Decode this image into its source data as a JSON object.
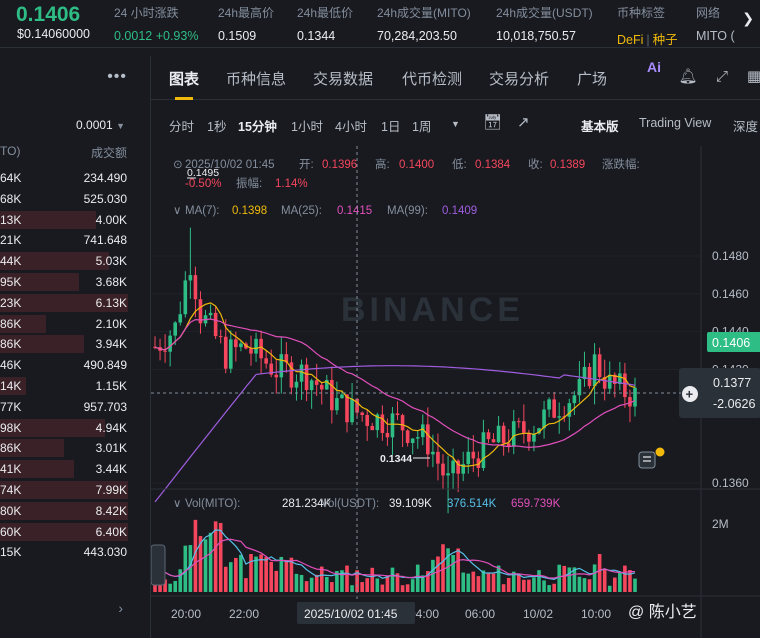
{
  "ticker": {
    "price": "0.1406",
    "price_usd": "$0.14060000",
    "cols": [
      {
        "label": "24 小时涨跌",
        "value": "0.0012 +0.93%",
        "style": "green"
      },
      {
        "label": "24h最高价",
        "value": "0.1509"
      },
      {
        "label": "24h最低价",
        "value": "0.1344"
      },
      {
        "label": "24h成交量(MITO)",
        "value": "70,284,203.50"
      },
      {
        "label": "24h成交量(USDT)",
        "value": "10,018,750.57"
      },
      {
        "label": "币种标签",
        "value_a": "DeFi",
        "value_b": "种子",
        "style": "gold"
      },
      {
        "label": "网络",
        "value": "MITO ("
      }
    ]
  },
  "book": {
    "precision": "0.0001",
    "header_left": "TO)",
    "header_right": "成交额",
    "rows": [
      {
        "l": "64K",
        "r": "234.490",
        "bar": 0
      },
      {
        "l": "68K",
        "r": "525.030",
        "bar": 0
      },
      {
        "l": "13K",
        "r": "4.00K",
        "bar": 0.75
      },
      {
        "l": "21K",
        "r": "741.648",
        "bar": 0
      },
      {
        "l": "44K",
        "r": "5.03K",
        "bar": 0.85
      },
      {
        "l": "95K",
        "r": "3.68K",
        "bar": 0.62
      },
      {
        "l": "23K",
        "r": "6.13K",
        "bar": 1.0
      },
      {
        "l": "86K",
        "r": "2.10K",
        "bar": 0.36
      },
      {
        "l": "86K",
        "r": "3.94K",
        "bar": 0.66
      },
      {
        "l": "46K",
        "r": "490.849",
        "bar": 0
      },
      {
        "l": "14K",
        "r": "1.15K",
        "bar": 0.2
      },
      {
        "l": "77K",
        "r": "957.703",
        "bar": 0
      },
      {
        "l": "98K",
        "r": "4.94K",
        "bar": 0.82
      },
      {
        "l": "86K",
        "r": "3.01K",
        "bar": 0.5
      },
      {
        "l": "41K",
        "r": "3.44K",
        "bar": 0.58
      },
      {
        "l": "74K",
        "r": "7.99K",
        "bar": 1.0
      },
      {
        "l": "80K",
        "r": "8.42K",
        "bar": 1.0
      },
      {
        "l": "60K",
        "r": "6.40K",
        "bar": 1.0
      },
      {
        "l": "15K",
        "r": "443.030",
        "bar": 0
      }
    ]
  },
  "tabs": [
    "图表",
    "币种信息",
    "交易数据",
    "代币检测",
    "交易分析",
    "广场"
  ],
  "timeframes": {
    "items": [
      "分时",
      "1秒",
      "15分钟",
      "1小时",
      "4小时",
      "1日",
      "1周"
    ],
    "active": "15分钟",
    "versions": [
      "基本版",
      "Trading View",
      "深度"
    ]
  },
  "chart": {
    "info_line1": [
      "2025/10/02 01:45",
      "开:",
      "0.1396",
      "高:",
      "0.1400",
      "低:",
      "0.1384",
      "收:",
      "0.1389",
      "涨跌幅:"
    ],
    "info_line2": [
      "-0.50%",
      "振幅:",
      "1.14%"
    ],
    "ma_line": [
      "MA(7):",
      "0.1398",
      "MA(25):",
      "0.1415",
      "MA(99):",
      "0.1409"
    ],
    "vol_line": [
      "Vol(MITO):",
      "281.234K",
      "Vol(USDT):",
      "39.109K",
      "376.514K",
      "659.739K"
    ],
    "price_ticks": [
      "0.1480",
      "0.1460",
      "0.1440",
      "0.1420",
      "0.1360"
    ],
    "current_price": "0.1406",
    "cursor_price": "0.1377",
    "cursor_change": "-2.0626",
    "high_label": "0.1495",
    "low_label": "0.1344",
    "vol_tick": "2M",
    "time_ticks": [
      "20:00",
      "22:00",
      "0",
      "04:00",
      "06:00",
      "10/02",
      "10:00"
    ],
    "cursor_time": "2025/10/02 01:45",
    "watermark_text": "BINANCE",
    "colors": {
      "up": "#2ebd85",
      "down": "#f6465d",
      "ma7": "#f0b90b",
      "ma25": "#e14fbb",
      "ma99": "#a05de0"
    }
  },
  "watermark_author": "@ 陈小艺"
}
